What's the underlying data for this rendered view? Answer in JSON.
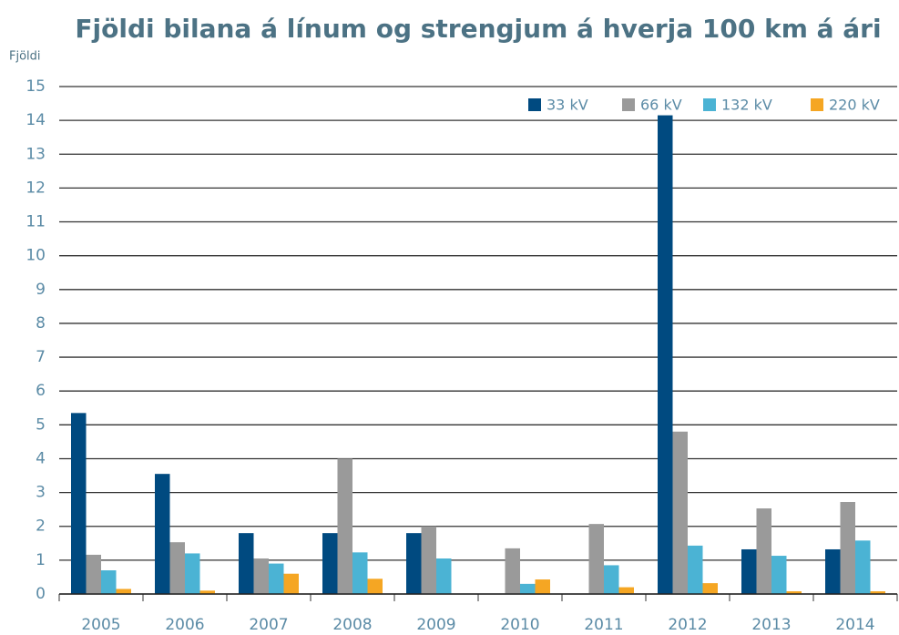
{
  "chart_data": {
    "type": "bar",
    "title": "Fjöldi bilana á línum og strengjum á hverja 100 km á ári",
    "y_label": "Fjöldi",
    "categories": [
      "2005",
      "2006",
      "2007",
      "2008",
      "2009",
      "2010",
      "2011",
      "2012",
      "2013",
      "2014"
    ],
    "series": [
      {
        "name": "33 kV",
        "color": "#004a80",
        "values": [
          5.35,
          3.55,
          1.8,
          1.8,
          1.8,
          0,
          0,
          14.15,
          1.32,
          1.32
        ]
      },
      {
        "name": "66 kV",
        "color": "#9a9a9a",
        "values": [
          1.16,
          1.53,
          1.05,
          4.0,
          2.0,
          1.35,
          2.07,
          4.8,
          2.53,
          2.72
        ]
      },
      {
        "name": "132 kV",
        "color": "#4bb3d4",
        "values": [
          0.7,
          1.2,
          0.9,
          1.23,
          1.05,
          0.3,
          0.85,
          1.43,
          1.13,
          1.58
        ]
      },
      {
        "name": "220 kV",
        "color": "#f5a623",
        "values": [
          0.15,
          0.1,
          0.6,
          0.45,
          0,
          0.43,
          0.2,
          0.32,
          0.08,
          0.08
        ]
      }
    ],
    "ylim": [
      0,
      15
    ],
    "yticks": [
      0,
      1,
      2,
      3,
      4,
      5,
      6,
      7,
      8,
      9,
      10,
      11,
      12,
      13,
      14,
      15
    ],
    "grid": true,
    "legend": "top-right"
  }
}
